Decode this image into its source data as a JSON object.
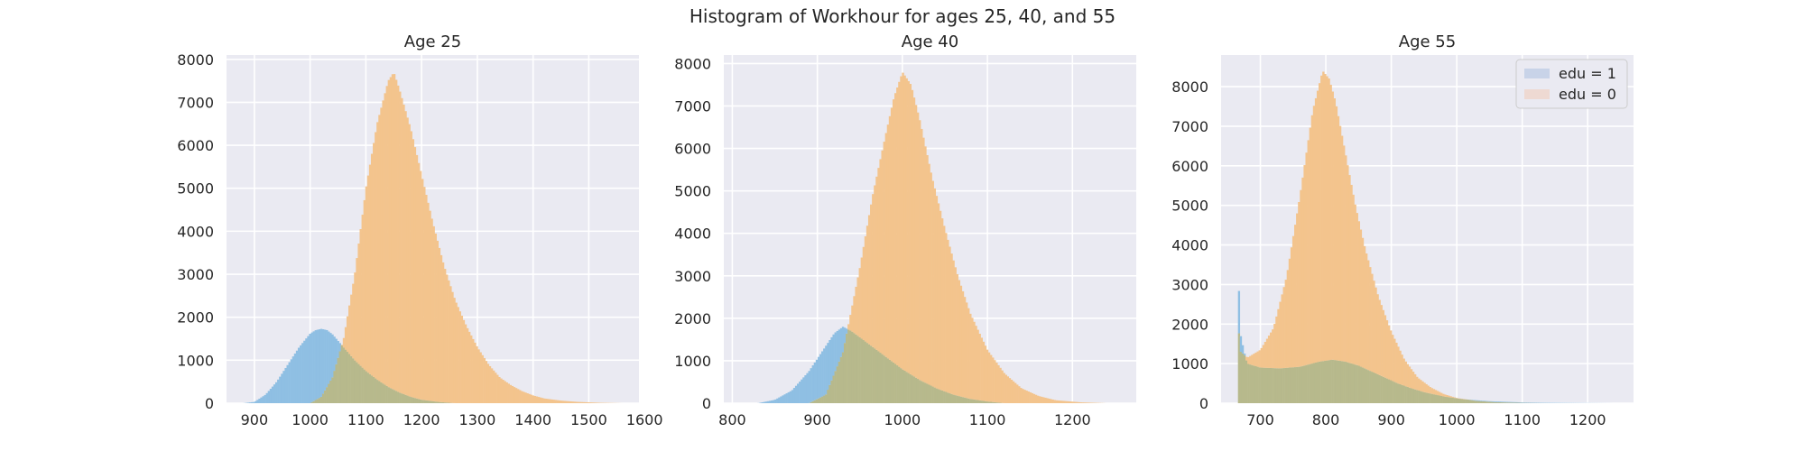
{
  "suptitle": "Histogram of Workhour for ages 25, 40, and 55",
  "colors": {
    "figure_bg": "#ffffff",
    "axes_bg": "#eaeaf2",
    "grid": "#ffffff",
    "edu1_fill": "#8fbfe3",
    "edu0_fill": "#f3c48d",
    "overlap_fill": "#b7b98c",
    "legend_edu1_swatch": "#c8d3e8",
    "legend_edu0_swatch": "#eed9d2"
  },
  "legend": {
    "placement": "top-right of Age 55 panel",
    "entries": [
      "edu = 1",
      "edu = 0"
    ]
  },
  "chart_data": [
    {
      "type": "area",
      "title": "Age 25",
      "xlim": [
        850,
        1590
      ],
      "ylim": [
        0,
        8100
      ],
      "xticks": [
        900,
        1000,
        1100,
        1200,
        1300,
        1400,
        1500,
        1600
      ],
      "yticks": [
        0,
        1000,
        2000,
        3000,
        4000,
        5000,
        6000,
        7000,
        8000
      ],
      "grid": true,
      "series": [
        {
          "name": "edu = 1",
          "x": [
            880,
            900,
            920,
            940,
            960,
            980,
            1000,
            1010,
            1020,
            1030,
            1040,
            1060,
            1080,
            1100,
            1120,
            1140,
            1160,
            1180,
            1200,
            1230,
            1260
          ],
          "y": [
            0,
            30,
            200,
            500,
            900,
            1300,
            1620,
            1700,
            1730,
            1700,
            1600,
            1300,
            1000,
            750,
            550,
            380,
            250,
            150,
            80,
            30,
            0
          ]
        },
        {
          "name": "edu = 0",
          "x": [
            1000,
            1020,
            1040,
            1060,
            1080,
            1100,
            1120,
            1140,
            1150,
            1160,
            1180,
            1200,
            1220,
            1240,
            1260,
            1280,
            1300,
            1320,
            1340,
            1360,
            1380,
            1400,
            1420,
            1450,
            1480,
            1520,
            1560
          ],
          "y": [
            0,
            150,
            600,
            1500,
            3000,
            5000,
            6500,
            7500,
            7700,
            7300,
            6400,
            5300,
            4200,
            3200,
            2400,
            1800,
            1300,
            900,
            600,
            420,
            280,
            180,
            110,
            60,
            30,
            10,
            0
          ]
        }
      ]
    },
    {
      "type": "area",
      "title": "Age 40",
      "xlim": [
        790,
        1275
      ],
      "ylim": [
        0,
        8200
      ],
      "xticks": [
        800,
        900,
        1000,
        1100,
        1200
      ],
      "yticks": [
        0,
        1000,
        2000,
        3000,
        4000,
        5000,
        6000,
        7000,
        8000
      ],
      "grid": true,
      "series": [
        {
          "name": "edu = 1",
          "x": [
            830,
            850,
            870,
            890,
            905,
            920,
            930,
            940,
            950,
            960,
            980,
            1000,
            1020,
            1040,
            1060,
            1080,
            1100,
            1120
          ],
          "y": [
            0,
            80,
            300,
            750,
            1200,
            1650,
            1800,
            1700,
            1550,
            1400,
            1100,
            800,
            550,
            350,
            200,
            100,
            40,
            0
          ]
        },
        {
          "name": "edu = 0",
          "x": [
            890,
            910,
            930,
            950,
            965,
            980,
            990,
            1000,
            1010,
            1020,
            1035,
            1050,
            1065,
            1080,
            1100,
            1120,
            1140,
            1160,
            1180,
            1210,
            1240
          ],
          "y": [
            0,
            200,
            1200,
            3200,
            4900,
            6300,
            7200,
            7800,
            7500,
            6700,
            5300,
            4100,
            3000,
            2100,
            1250,
            700,
            350,
            170,
            70,
            20,
            0
          ]
        }
      ]
    },
    {
      "type": "area",
      "title": "Age 55",
      "xlim": [
        640,
        1270
      ],
      "ylim": [
        0,
        8800
      ],
      "xticks": [
        700,
        800,
        900,
        1000,
        1100,
        1200
      ],
      "yticks": [
        0,
        1000,
        2000,
        3000,
        4000,
        5000,
        6000,
        7000,
        8000
      ],
      "grid": true,
      "series": [
        {
          "name": "edu = 1",
          "x": [
            666,
            667,
            668,
            670,
            675,
            680,
            700,
            730,
            760,
            790,
            810,
            830,
            850,
            870,
            890,
            910,
            930,
            950,
            980,
            1010,
            1050,
            1100,
            1150,
            1200,
            1240
          ],
          "y": [
            0,
            3000,
            2200,
            1700,
            1300,
            1000,
            900,
            880,
            920,
            1050,
            1100,
            1050,
            950,
            800,
            650,
            500,
            380,
            280,
            170,
            100,
            50,
            20,
            8,
            3,
            0
          ]
        },
        {
          "name": "edu = 0",
          "x": [
            666,
            667,
            670,
            680,
            700,
            720,
            740,
            760,
            780,
            795,
            805,
            815,
            830,
            845,
            860,
            880,
            900,
            920,
            940,
            960,
            980,
            1000,
            1030,
            1060,
            1100,
            1150
          ],
          "y": [
            0,
            1800,
            1300,
            1150,
            1350,
            1900,
            3200,
            5200,
            7400,
            8400,
            8200,
            7600,
            6300,
            5000,
            3900,
            2700,
            1800,
            1100,
            650,
            400,
            230,
            130,
            60,
            25,
            8,
            0
          ]
        }
      ]
    }
  ]
}
